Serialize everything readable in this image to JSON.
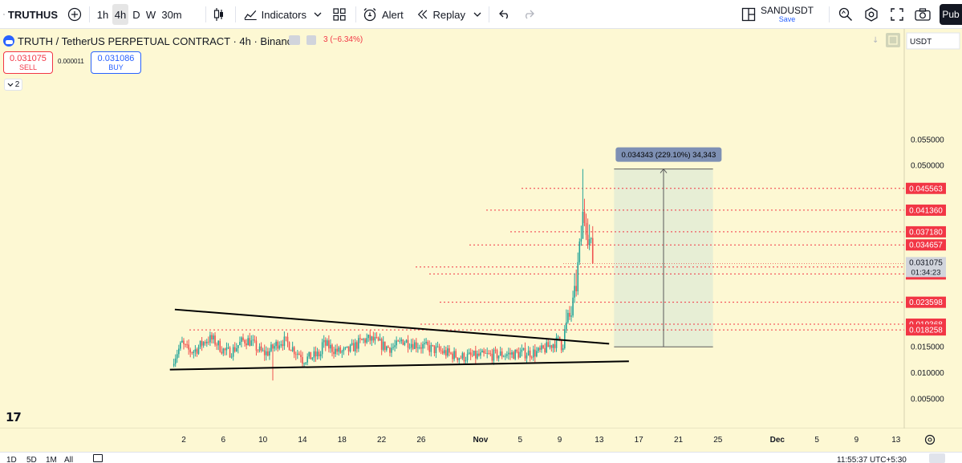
{
  "toolbar": {
    "symbol": "TRUTHUS",
    "intervals": [
      "1h",
      "4h",
      "D",
      "W",
      "30m"
    ],
    "active_interval": "4h",
    "indicators_label": "Indicators",
    "alert_label": "Alert",
    "replay_label": "Replay",
    "layout_name": "SANDUSDT",
    "layout_status": "Save",
    "publish_label": "Pub",
    "icons": [
      "search-icon",
      "add-symbol-icon",
      "bar-style-icon",
      "indicators-icon",
      "templates-icon",
      "alert-icon",
      "replay-icon",
      "undo-icon",
      "redo-icon",
      "layout-icon",
      "quick-search-icon",
      "settings-icon",
      "fullscreen-icon",
      "camera-icon"
    ]
  },
  "legend": {
    "title": "TRUTH / TetherUS PERPETUAL CONTRACT · 4h · Binance",
    "change": "3 (−6.34%)",
    "sell_price": "0.031075",
    "sell_label": "SELL",
    "spread": "0.000011",
    "buy_price": "0.031086",
    "buy_label": "BUY",
    "indicator_count": "2"
  },
  "chart_data": {
    "type": "candlestick",
    "symbol": "TRUTH / TetherUS PERPETUAL CONTRACT",
    "interval": "4h",
    "exchange": "Binance",
    "quote_currency": "USDT",
    "y_ticks": [
      "0.055000",
      "0.050000",
      "0.015000",
      "0.010000",
      "0.005000"
    ],
    "y_tick_values": [
      0.055,
      0.05,
      0.015,
      0.01,
      0.005
    ],
    "ylim": [
      0.0,
      0.0587
    ],
    "x_ticks": [
      "2",
      "6",
      "10",
      "14",
      "18",
      "22",
      "26",
      "Nov",
      "5",
      "9",
      "13",
      "17",
      "21",
      "25",
      "Dec",
      "5",
      "9",
      "13"
    ],
    "x_tick_days": [
      2,
      6,
      10,
      14,
      18,
      22,
      26,
      32,
      36,
      40,
      44,
      48,
      52,
      56,
      62,
      66,
      70,
      74
    ],
    "xlim_days": [
      0,
      78.7
    ],
    "current_price": "0.031075",
    "countdown": "01:34:23",
    "current_price_value": 0.031075,
    "price_lines": [
      {
        "label": "0.045563",
        "value": 0.045563
      },
      {
        "label": "0.041360",
        "value": 0.04136
      },
      {
        "label": "0.037180",
        "value": 0.03718
      },
      {
        "label": "0.034657",
        "value": 0.034657
      },
      {
        "label": "0.030398",
        "value": 0.030398
      },
      {
        "label": "0.029058",
        "value": 0.029058
      },
      {
        "label": "0.023598",
        "value": 0.023598
      },
      {
        "label": "0.019368",
        "value": 0.019368
      },
      {
        "label": "0.018258",
        "value": 0.018258
      }
    ],
    "trendlines": [
      {
        "from": [
          1.1,
          0.0222
        ],
        "to": [
          45.0,
          0.0156
        ]
      },
      {
        "from": [
          0.6,
          0.0106
        ],
        "to": [
          47.0,
          0.0122
        ]
      }
    ],
    "measure": {
      "label": "0.034343 (229.10%) 34,343",
      "from_day": 45.5,
      "to_day": 55.5,
      "low": 0.015,
      "high": 0.0493
    },
    "candles": {
      "start_day": 1.0,
      "end_day": 43.4,
      "base_price": 0.0142,
      "spike_start_day": 40.5,
      "spike_high": 0.0493,
      "last_close": 0.031075
    }
  },
  "bottom_bar": {
    "ranges": [
      "1D",
      "5D",
      "1M",
      "All"
    ],
    "time": "11:55:37 UTC+5:30"
  },
  "colors": {
    "chart_bg": "#fdf8d3",
    "up": "#26a69a",
    "down": "#ef5350",
    "line": "#f23645",
    "measure_fill": "#e3ecd5",
    "measure_label_bg": "#7e90b4"
  }
}
